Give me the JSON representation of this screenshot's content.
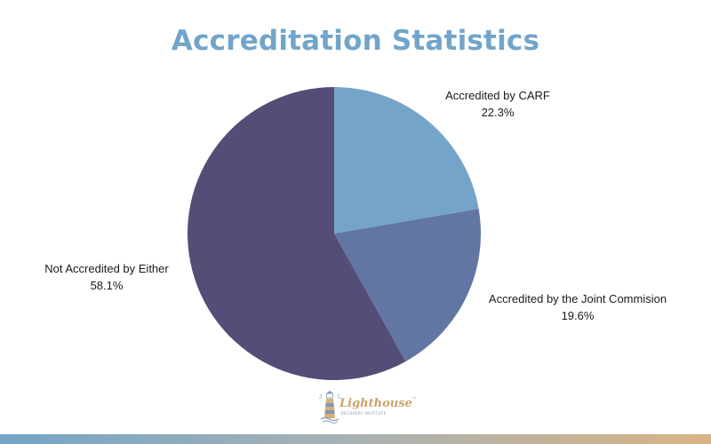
{
  "chart_data": {
    "type": "pie",
    "title": "Accreditation Statistics",
    "slices": [
      {
        "label": "Accredited by CARF",
        "value": 22.3,
        "value_label": "22.3%",
        "color": "#74a5c9"
      },
      {
        "label": "Accredited by the Joint Commision",
        "value": 19.6,
        "value_label": "19.6%",
        "color": "#6176a3"
      },
      {
        "label": "Not Accredited by Either",
        "value": 58.1,
        "value_label": "58.1%",
        "color": "#544d77"
      }
    ],
    "start_angle": "12 o'clock",
    "direction": "clockwise",
    "legend": "none (labels beside slices)"
  },
  "colors": {
    "title": "#72a5c9",
    "bottom_bar_gradient": [
      "#74a5c8",
      "#a9b2b2",
      "#d9b384"
    ],
    "logo_gold": "#c9a36b",
    "logo_blue": "#7f98b2"
  },
  "logo": {
    "icon": "lighthouse-icon",
    "word": "Lighthouse",
    "trademark": "™",
    "subtitle": "RECOVERY INSTITUTE"
  }
}
